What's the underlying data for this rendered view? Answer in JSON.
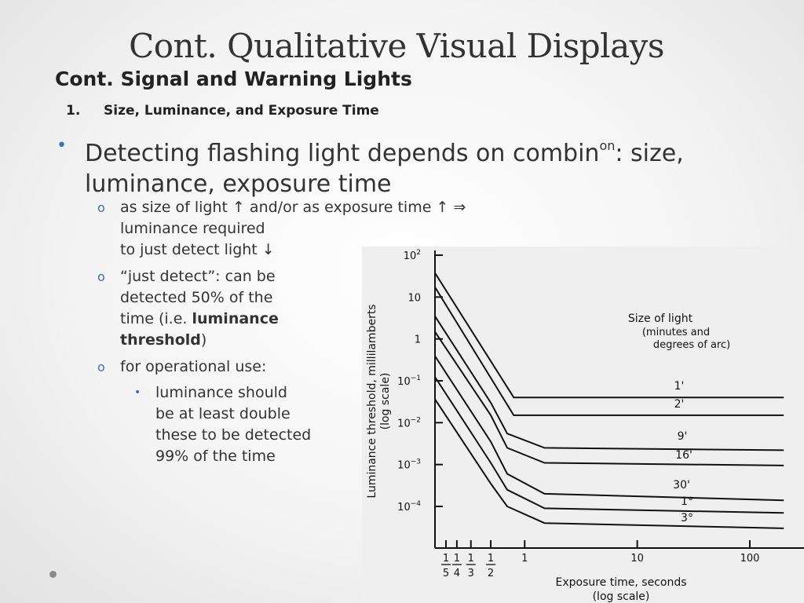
{
  "slide": {
    "title": "Cont. Qualitative Visual Displays",
    "subtitle": "Cont. Signal and Warning Lights",
    "numbered_item": {
      "number": "1.",
      "label": "Size, Luminance, and Exposure Time"
    },
    "bullet": {
      "text_before": "Detecting flashing light depends on combin",
      "superscript": "on",
      "text_after": ":  size, luminance, exposure time"
    },
    "sub_bullets": [
      {
        "lines": [
          "as size of light ↑ and/or as exposure time ↑ ⇒",
          "luminance required",
          "to just detect light ↓"
        ]
      },
      {
        "before": [
          "“just detect”: can be",
          "detected 50% of the"
        ],
        "line3_prefix": "time (i.e. ",
        "bold1": "luminance",
        "bold2": "threshold",
        "suffix": ")"
      },
      {
        "lines": [
          "for operational use:"
        ]
      }
    ],
    "sub_sub_bullet": {
      "lines": [
        "luminance should",
        "be at least double",
        "these to be detected",
        "99% of the time"
      ]
    },
    "colors": {
      "bullet_marker": "#3b6fb6",
      "text": "#333333"
    }
  },
  "chart_data": {
    "type": "line",
    "scale": "log-log",
    "xlabel": [
      "Exposure time, seconds",
      "(log scale)"
    ],
    "ylabel": [
      "Luminance threshold, millilamberts",
      "(log scale)"
    ],
    "x_ticks": [
      {
        "value": 0.2,
        "num": "1",
        "den": "5"
      },
      {
        "value": 0.25,
        "num": "1",
        "den": "4"
      },
      {
        "value": 0.333,
        "num": "1",
        "den": "3"
      },
      {
        "value": 0.5,
        "num": "1",
        "den": "2"
      },
      {
        "value": 1,
        "label": "1"
      },
      {
        "value": 10,
        "label": "10"
      },
      {
        "value": 100,
        "label": "100"
      }
    ],
    "y_ticks": [
      {
        "value": 100,
        "base": "10",
        "exp": "2"
      },
      {
        "value": 10,
        "base": "10",
        "exp": ""
      },
      {
        "value": 1,
        "base": "1",
        "exp": ""
      },
      {
        "value": 0.1,
        "base": "10",
        "exp": "−1"
      },
      {
        "value": 0.01,
        "base": "10",
        "exp": "−2"
      },
      {
        "value": 0.001,
        "base": "10",
        "exp": "−3"
      },
      {
        "value": 0.0001,
        "base": "10",
        "exp": "−4"
      }
    ],
    "legend_title": [
      "Size of light",
      "(minutes and",
      "degrees of arc)"
    ],
    "series": [
      {
        "name": "1'",
        "points": [
          [
            0.127,
            100
          ],
          [
            0.8,
            0.04
          ],
          [
            200,
            0.04
          ]
        ]
      },
      {
        "name": "2'",
        "points": [
          [
            0.107,
            100
          ],
          [
            0.8,
            0.015
          ],
          [
            200,
            0.015
          ]
        ]
      },
      {
        "name": "9'",
        "points": [
          [
            0.105,
            20
          ],
          [
            0.5,
            0.03
          ],
          [
            0.7,
            0.0055
          ],
          [
            1.5,
            0.0025
          ],
          [
            200,
            0.0022
          ]
        ]
      },
      {
        "name": "16'",
        "points": [
          [
            0.105,
            8
          ],
          [
            0.5,
            0.015
          ],
          [
            0.7,
            0.0025
          ],
          [
            1.5,
            0.0011
          ],
          [
            200,
            0.00095
          ]
        ]
      },
      {
        "name": "30'",
        "points": [
          [
            0.105,
            2.2
          ],
          [
            0.5,
            0.0035
          ],
          [
            0.7,
            0.0006
          ],
          [
            1.5,
            0.0002
          ],
          [
            200,
            0.00014
          ]
        ]
      },
      {
        "name": "1°",
        "points": [
          [
            0.105,
            0.7
          ],
          [
            0.5,
            0.0011
          ],
          [
            0.7,
            0.00025
          ],
          [
            1.5,
            9e-05
          ],
          [
            200,
            7e-05
          ]
        ]
      },
      {
        "name": "3°",
        "points": [
          [
            0.105,
            0.2
          ],
          [
            0.5,
            0.00035
          ],
          [
            0.7,
            0.0001
          ],
          [
            1.5,
            4e-05
          ],
          [
            200,
            3e-05
          ]
        ]
      }
    ]
  }
}
